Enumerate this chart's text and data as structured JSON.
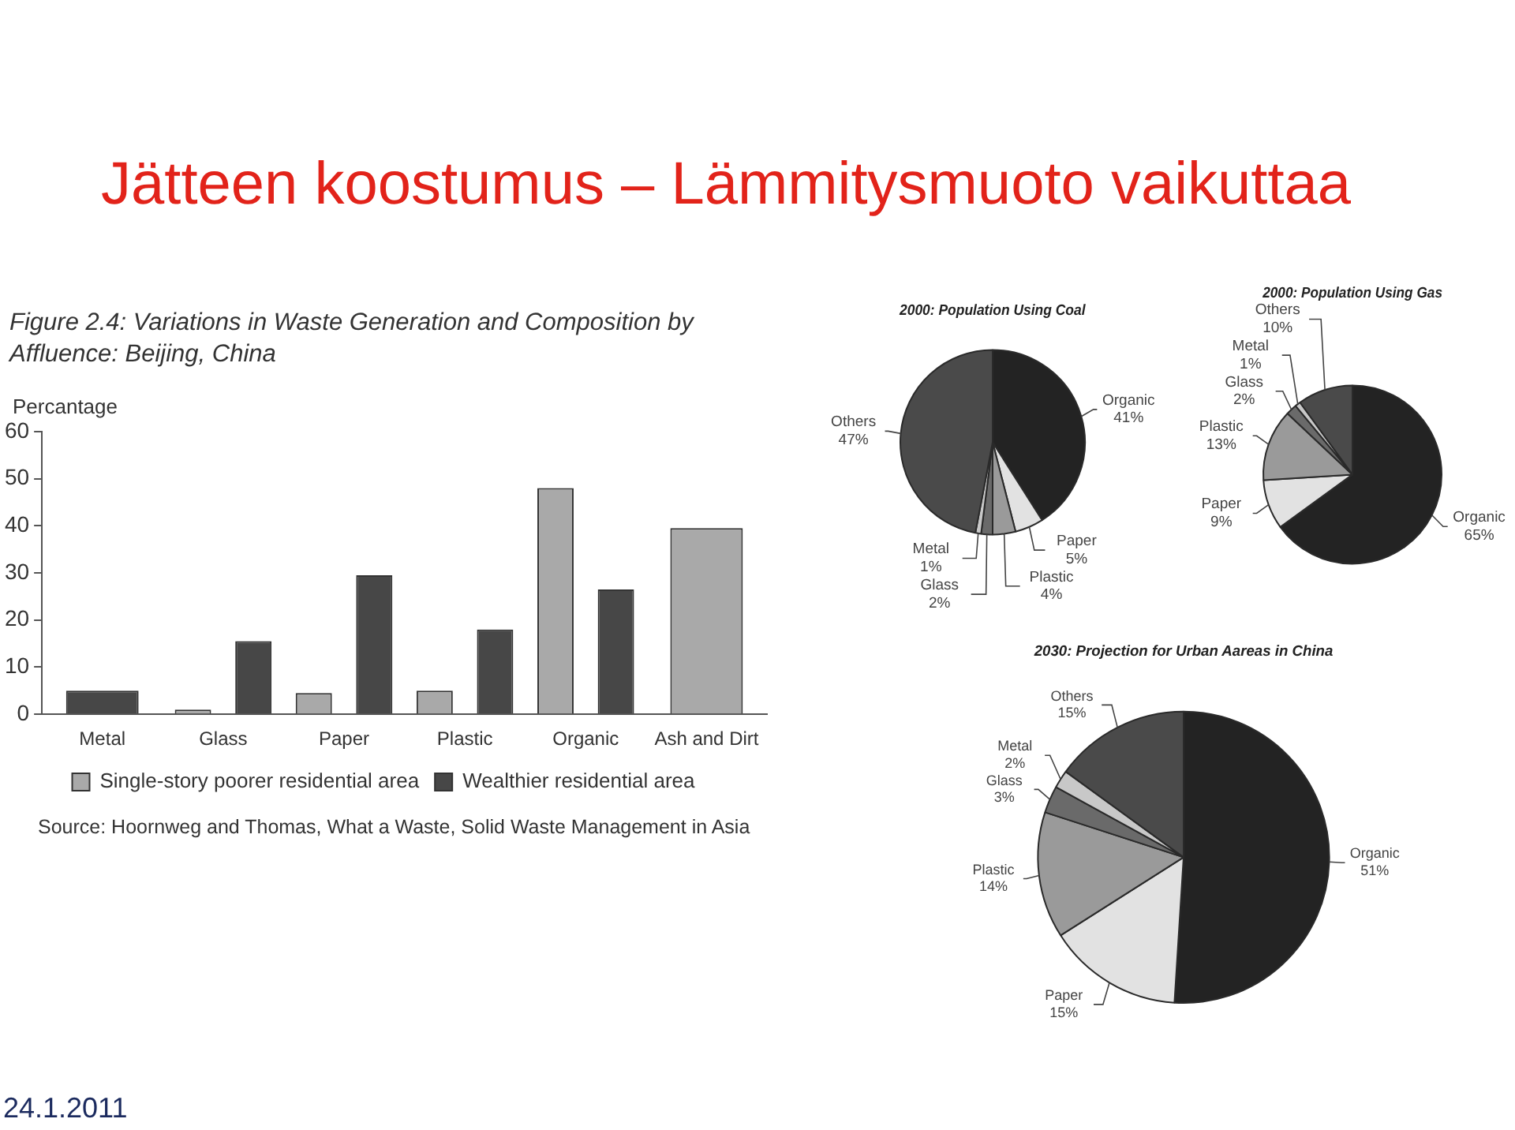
{
  "chart_data": [
    {
      "type": "bar",
      "title": "Jätteen koostumus – Lämmitysmuoto vaikuttaa",
      "subtitle": "Figure 2.4: Variations in Waste Generation and Composition by Affluence: Beijing, China",
      "ylabel": "Percantage",
      "categories": [
        "Metal",
        "Glass",
        "Paper",
        "Plastic",
        "Organic",
        "Ash and Dirt"
      ],
      "series": [
        {
          "name": "Single-story poorer residential area",
          "color": "#a9a9a9",
          "values": [
            null,
            1,
            4.5,
            5,
            48,
            39.5
          ]
        },
        {
          "name": "Wealthier residential area",
          "color": "#474747",
          "values": [
            5,
            15.5,
            29.5,
            18,
            26.5,
            null
          ]
        }
      ],
      "ylim": [
        0,
        60
      ],
      "yticks": [
        0,
        10,
        20,
        30,
        40,
        50,
        60
      ],
      "grid": false,
      "legend": "bottom",
      "annotations": [
        "Source: Hoornweg and Thomas, What a Waste, Solid Waste Management in Asia",
        "24.1.2011"
      ]
    },
    {
      "type": "pie",
      "title": "2000: Population Using Coal",
      "categories": [
        "Organic",
        "Paper",
        "Plastic",
        "Glass",
        "Metal",
        "Others"
      ],
      "values": [
        41,
        5,
        4,
        2,
        1,
        47
      ],
      "value_labels": [
        "41%",
        "5%",
        "4%",
        "2%",
        "1%",
        "47%"
      ],
      "colors": [
        "#232323",
        "#e2e2e2",
        "#9a9a9a",
        "#6a6a6a",
        "#c8c8c8",
        "#4a4a4a"
      ],
      "legend": false
    },
    {
      "type": "pie",
      "title": "2000: Population Using Gas",
      "categories": [
        "Organic",
        "Paper",
        "Plastic",
        "Glass",
        "Metal",
        "Others"
      ],
      "values": [
        65,
        9,
        13,
        2,
        1,
        10
      ],
      "value_labels": [
        "65%",
        "9%",
        "13%",
        "2%",
        "1%",
        "10%"
      ],
      "colors": [
        "#232323",
        "#e2e2e2",
        "#9a9a9a",
        "#6a6a6a",
        "#c8c8c8",
        "#4a4a4a"
      ],
      "legend": false
    },
    {
      "type": "pie",
      "title": "2030: Projection for Urban Aareas in China",
      "categories": [
        "Organic",
        "Paper",
        "Plastic",
        "Glass",
        "Metal",
        "Others"
      ],
      "values": [
        51,
        15,
        14,
        3,
        2,
        15
      ],
      "value_labels": [
        "51%",
        "15%",
        "14%",
        "3%",
        "2%",
        "15%"
      ],
      "colors": [
        "#232323",
        "#e2e2e2",
        "#9a9a9a",
        "#6a6a6a",
        "#c8c8c8",
        "#4a4a4a"
      ],
      "legend": false
    }
  ]
}
